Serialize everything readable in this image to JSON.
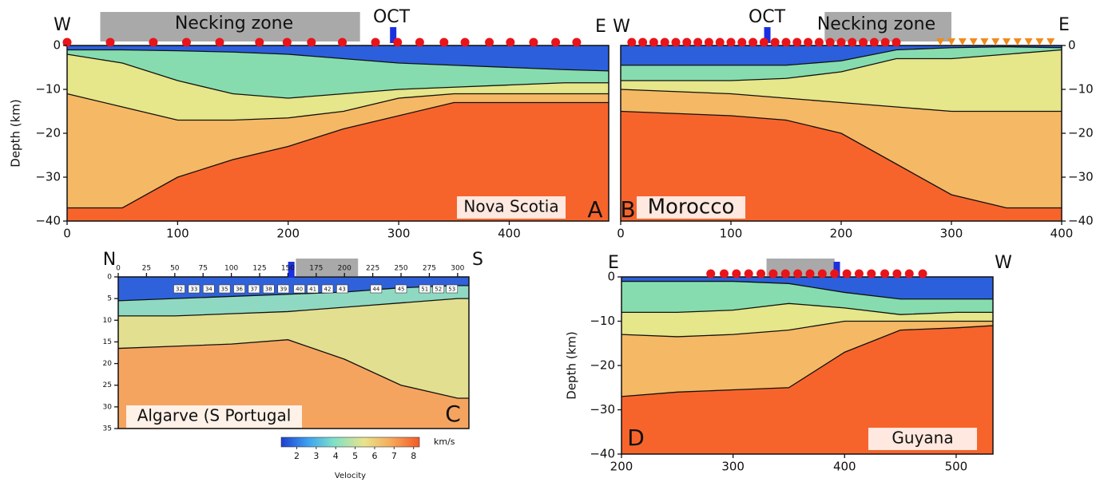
{
  "chart_data": [
    {
      "type": "section",
      "panel": "A",
      "label": "Nova Scotia",
      "ylabel": "Depth (km)",
      "left_end": "W",
      "right_end": "E",
      "zone_label": "Necking zone",
      "zone": [
        30,
        265
      ],
      "oct_label": "OCT",
      "oct": 295,
      "oct_color": "#1a2fe0",
      "xlim": [
        0,
        490
      ],
      "ylim": [
        -40,
        0
      ],
      "xticks": [
        0,
        100,
        200,
        300,
        400
      ],
      "yticks": [
        0,
        {
          "value": -10,
          "label": "−10"
        },
        {
          "value": -20,
          "label": "−20"
        },
        {
          "value": -30,
          "label": "−30"
        },
        {
          "value": -40,
          "label": "−40"
        }
      ],
      "water_color": "#2c5fdc",
      "x": [
        0,
        50,
        100,
        150,
        200,
        250,
        300,
        350,
        400,
        450,
        490
      ],
      "series": [
        {
          "color": "#86dcae",
          "values": [
            -1,
            -1,
            -1.2,
            -1.5,
            -2,
            -3,
            -4,
            -4.5,
            -5,
            -5.5,
            -5.8
          ]
        },
        {
          "color": "#e6e68a",
          "values": [
            -2,
            -4,
            -8,
            -11,
            -12,
            -11,
            -10,
            -9.5,
            -9,
            -8.5,
            -8.5
          ]
        },
        {
          "color": "#f5b865",
          "values": [
            -11,
            -14,
            -17,
            -17,
            -16.5,
            -15,
            -12,
            -11,
            -11,
            -11,
            -11
          ]
        },
        {
          "color": "#f6642c",
          "values": [
            -37,
            -37,
            -30,
            -26,
            -23,
            -19,
            -16,
            -13,
            -13,
            -13,
            -13
          ]
        }
      ],
      "stations": [
        {
          "marker": "circle",
          "color": "#e8141a",
          "x": [
            0,
            39,
            78,
            108,
            138,
            174,
            199,
            221,
            249,
            279,
            299,
            319,
            341,
            360,
            382,
            401,
            422,
            442,
            461
          ]
        }
      ]
    },
    {
      "type": "section",
      "panel": "B",
      "label": "Morocco",
      "left_end": "W",
      "right_end": "E",
      "zone_label": "Necking zone",
      "zone": [
        185,
        300
      ],
      "oct_label": "OCT",
      "oct": 133,
      "oct_color": "#1a2fe0",
      "xlim": [
        0,
        400
      ],
      "ylim": [
        -40,
        0
      ],
      "xticks": [
        0,
        100,
        200,
        300,
        400
      ],
      "yticks": [
        0,
        {
          "value": -10,
          "label": "−10"
        },
        {
          "value": -20,
          "label": "−20"
        },
        {
          "value": -30,
          "label": "−30"
        },
        {
          "value": -40,
          "label": "−40"
        }
      ],
      "water_color": "#2c5fdc",
      "x": [
        0,
        50,
        100,
        150,
        200,
        250,
        300,
        350,
        400
      ],
      "series": [
        {
          "color": "#86dcae",
          "values": [
            -4.5,
            -4.5,
            -4.5,
            -4.5,
            -3.5,
            -1,
            -0.5,
            -0.3,
            -0.5
          ]
        },
        {
          "color": "#e6e68a",
          "values": [
            -8,
            -8,
            -8,
            -7.5,
            -6,
            -3,
            -3,
            -2,
            -1
          ]
        },
        {
          "color": "#f5b865",
          "values": [
            -10,
            -10.5,
            -11,
            -12,
            -13,
            -14,
            -15,
            -15,
            -15
          ]
        },
        {
          "color": "#f6642c",
          "values": [
            -15,
            -15.5,
            -16,
            -17,
            -20,
            -27,
            -34,
            -37,
            -37
          ]
        }
      ],
      "stations": [
        {
          "marker": "circle",
          "color": "#e8141a",
          "x": [
            10,
            20,
            30,
            40,
            50,
            60,
            70,
            80,
            90,
            100,
            110,
            120,
            130,
            140,
            150,
            160,
            170,
            180,
            190,
            200,
            210,
            220,
            230,
            240,
            250
          ]
        },
        {
          "marker": "triangle",
          "color": "#f08a1c",
          "x": [
            290,
            300,
            310,
            320,
            330,
            340,
            350,
            360,
            370,
            380,
            390
          ]
        }
      ]
    },
    {
      "type": "section",
      "panel": "C",
      "label": "Algarve (S Portugal",
      "left_end": "N",
      "right_end": "S",
      "zone": [
        157,
        212
      ],
      "oct": 153,
      "oct_color": "#1a2fe0",
      "xlim": [
        0,
        310
      ],
      "ylim": [
        35,
        0
      ],
      "xticks": [
        0,
        25,
        50,
        75,
        100,
        125,
        150,
        175,
        200,
        225,
        250,
        275,
        300
      ],
      "yticks": [
        0,
        5,
        10,
        15,
        20,
        25,
        30,
        35
      ],
      "water_color": "#2f62da",
      "x": [
        0,
        50,
        100,
        150,
        200,
        250,
        300,
        310
      ],
      "series": [
        {
          "color": "#8fd9c2",
          "values": [
            5.5,
            5,
            4.5,
            4,
            3.5,
            2.5,
            2,
            2
          ]
        },
        {
          "color": "#e3df90",
          "values": [
            9,
            9,
            8.5,
            8,
            7,
            6,
            5,
            5
          ]
        },
        {
          "color": "#f5a45f",
          "values": [
            16.5,
            16,
            15.5,
            14.5,
            19,
            25,
            28,
            28
          ]
        }
      ],
      "station_ids": [
        32,
        33,
        34,
        35,
        36,
        37,
        38,
        39,
        40,
        41,
        42,
        43,
        44,
        45,
        51,
        52,
        53
      ],
      "station_x": [
        54,
        67,
        80,
        94,
        107,
        120,
        133,
        146,
        160,
        172,
        185,
        198,
        228,
        250,
        271,
        283,
        295
      ],
      "colorbar": {
        "label": "Velocity",
        "unit": "km/s",
        "lim": [
          1.2,
          8.3
        ],
        "ticks": [
          2,
          3,
          4,
          5,
          6,
          7,
          8
        ]
      }
    },
    {
      "type": "section",
      "panel": "D",
      "label": "Guyana",
      "ylabel": "Depth (km)",
      "left_end": "E",
      "right_end": "W",
      "zone": [
        330,
        391
      ],
      "oct": 393,
      "oct_color": "#1a2fe0",
      "xlim": [
        200,
        533
      ],
      "ylim": [
        -40,
        0
      ],
      "xticks": [
        200,
        300,
        400,
        500
      ],
      "yticks": [
        0,
        {
          "value": -10,
          "label": "−10"
        },
        {
          "value": -20,
          "label": "−20"
        },
        {
          "value": -30,
          "label": "−30"
        },
        {
          "value": -40,
          "label": "−40"
        }
      ],
      "water_color": "#2c5fdc",
      "x": [
        200,
        250,
        300,
        350,
        400,
        450,
        500,
        533
      ],
      "series": [
        {
          "color": "#86dcae",
          "values": [
            -1,
            -1,
            -1,
            -1.5,
            -3.5,
            -5,
            -5,
            -5
          ]
        },
        {
          "color": "#e6e68a",
          "values": [
            -8,
            -8,
            -7.5,
            -6,
            -7,
            -8.5,
            -8,
            -8
          ]
        },
        {
          "color": "#f5b865",
          "values": [
            -13,
            -13.5,
            -13,
            -12,
            -10,
            -10,
            -10,
            -10
          ]
        },
        {
          "color": "#f6642c",
          "values": [
            -27,
            -26,
            -25.5,
            -25,
            -17,
            -12,
            -11.5,
            -11
          ]
        }
      ],
      "stations": [
        {
          "marker": "circle",
          "color": "#e8141a",
          "x": [
            280,
            292,
            303,
            314,
            325,
            336,
            347,
            358,
            369,
            380,
            391,
            402,
            413,
            424,
            436,
            447,
            458,
            470
          ]
        }
      ]
    }
  ]
}
